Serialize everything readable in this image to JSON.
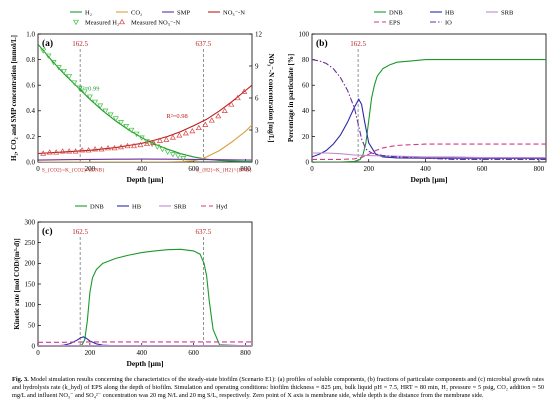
{
  "chart_data": [
    {
      "type": "line",
      "panel_label": "(a)",
      "xlabel": "Depth [µm]",
      "ylabel_left": "H₂, CO₂ and SMP concentration [mmol/L]",
      "ylabel_right": "NO₃⁻-N concentration [mg/L]",
      "xlim": [
        0,
        825
      ],
      "ylim_left": [
        0,
        1.0
      ],
      "ylim_right": [
        0,
        12
      ],
      "xticks": [
        0,
        200,
        400,
        600,
        800
      ],
      "yticks_left": [
        0.0,
        0.2,
        0.4,
        0.6,
        0.8,
        1.0
      ],
      "yticks_right": [
        0,
        3,
        6,
        9,
        12
      ],
      "legend": [
        "H₂",
        "CO₂",
        "SMP",
        "NO₃⁻-N",
        "Measured H₂",
        "Measured NO₃⁻-N"
      ],
      "colors": {
        "H2": "#1a9a2a",
        "CO2": "#d9a13a",
        "SMP": "#6a2f9f",
        "NO3": "#b81e1e",
        "measH2": "#3fbf3f",
        "measNO3": "#d94040"
      },
      "vlines": [
        162.5,
        637.5
      ],
      "vline_labels": [
        "162.5",
        "637.5"
      ],
      "annotations": [
        "R²=0.99",
        "R²=0.98",
        "S_{CO2}=K_{CO2}^{DNB}",
        "S_{H2}=K_{H2}^{DNB}"
      ],
      "series": [
        {
          "name": "H₂",
          "axis": "left",
          "x": [
            0,
            50,
            100,
            150,
            200,
            250,
            300,
            350,
            400,
            450,
            500,
            550,
            600,
            650,
            700,
            750,
            800,
            825
          ],
          "values": [
            0.92,
            0.8,
            0.69,
            0.59,
            0.49,
            0.4,
            0.32,
            0.25,
            0.19,
            0.14,
            0.1,
            0.065,
            0.04,
            0.022,
            0.012,
            0.007,
            0.004,
            0.003
          ]
        },
        {
          "name": "CO₂",
          "axis": "left",
          "x": [
            0,
            100,
            200,
            300,
            400,
            500,
            550,
            600,
            625,
            650,
            700,
            750,
            800,
            825
          ],
          "values": [
            0.0,
            0.0,
            0.0,
            0.0,
            0.0,
            0.0,
            0.003,
            0.01,
            0.02,
            0.04,
            0.09,
            0.16,
            0.24,
            0.29
          ]
        },
        {
          "name": "SMP",
          "axis": "left",
          "x": [
            0,
            100,
            200,
            300,
            400,
            500,
            600,
            700,
            800,
            825
          ],
          "values": [
            0.015,
            0.018,
            0.02,
            0.022,
            0.023,
            0.022,
            0.02,
            0.018,
            0.016,
            0.015
          ]
        },
        {
          "name": "NO₃⁻-N",
          "axis": "right",
          "x": [
            0,
            100,
            200,
            300,
            400,
            450,
            500,
            550,
            600,
            650,
            700,
            750,
            800,
            825
          ],
          "values": [
            0.8,
            0.95,
            1.1,
            1.35,
            1.75,
            2.05,
            2.4,
            2.85,
            3.4,
            4.0,
            4.8,
            5.7,
            6.7,
            7.2
          ]
        },
        {
          "name": "Measured H₂",
          "axis": "left",
          "x": [
            20,
            40,
            60,
            80,
            100,
            120,
            140,
            160,
            180,
            200,
            220,
            240,
            260,
            280,
            300,
            320,
            340,
            360,
            380,
            400,
            420,
            440,
            460,
            480,
            500,
            520,
            540,
            560
          ],
          "values": [
            0.87,
            0.83,
            0.78,
            0.74,
            0.71,
            0.67,
            0.62,
            0.58,
            0.55,
            0.51,
            0.47,
            0.44,
            0.4,
            0.37,
            0.34,
            0.31,
            0.28,
            0.25,
            0.22,
            0.19,
            0.16,
            0.14,
            0.12,
            0.1,
            0.08,
            0.06,
            0.05,
            0.03
          ]
        },
        {
          "name": "Measured NO₃⁻-N",
          "axis": "right",
          "x": [
            20,
            45,
            70,
            95,
            120,
            145,
            170,
            195,
            220,
            245,
            270,
            295,
            320,
            345,
            370,
            395,
            420,
            445,
            470,
            495,
            520,
            545,
            570,
            595,
            620,
            645,
            670,
            695,
            720,
            745,
            770,
            795
          ],
          "values": [
            0.8,
            0.9,
            0.9,
            1.0,
            1.0,
            1.0,
            1.1,
            1.1,
            1.2,
            1.2,
            1.3,
            1.3,
            1.4,
            1.5,
            1.5,
            1.6,
            1.7,
            1.8,
            2.0,
            2.1,
            2.3,
            2.5,
            2.7,
            2.9,
            3.2,
            3.5,
            3.9,
            4.3,
            4.8,
            5.4,
            6.0,
            6.6
          ]
        }
      ]
    },
    {
      "type": "line",
      "panel_label": "(b)",
      "xlabel": "Depth [µm]",
      "ylabel": "Percentage in particulate [%]",
      "xlim": [
        0,
        825
      ],
      "ylim": [
        0,
        100
      ],
      "xticks": [
        0,
        200,
        400,
        600,
        800
      ],
      "yticks": [
        0,
        20,
        40,
        60,
        80,
        100
      ],
      "legend": [
        "DNB",
        "HB",
        "SRB",
        "EPS",
        "IO"
      ],
      "colors": {
        "DNB": "#1a9a2a",
        "HB": "#2a2aa8",
        "SRB": "#c08ad0",
        "EPS": "#d03a8a",
        "IO": "#6a2f9f"
      },
      "vlines": [
        162.5
      ],
      "vline_labels": [
        "162.5"
      ],
      "series": [
        {
          "name": "DNB",
          "x": [
            0,
            100,
            150,
            170,
            180,
            190,
            200,
            210,
            220,
            230,
            250,
            275,
            300,
            350,
            400,
            500,
            600,
            700,
            825
          ],
          "values": [
            0,
            0,
            0.5,
            2,
            6,
            15,
            32,
            50,
            60,
            67,
            73,
            76,
            78,
            79,
            80,
            80,
            80,
            80,
            80
          ]
        },
        {
          "name": "HB",
          "x": [
            0,
            25,
            50,
            75,
            100,
            125,
            150,
            165,
            175,
            185,
            200,
            225,
            250,
            300,
            400,
            500,
            600,
            700,
            825
          ],
          "values": [
            4,
            6,
            9,
            14,
            21,
            31,
            43,
            49,
            45,
            32,
            15,
            6,
            4,
            3.2,
            3,
            3,
            3,
            3,
            3
          ]
        },
        {
          "name": "SRB",
          "x": [
            0,
            50,
            100,
            150,
            200,
            300,
            400,
            500,
            600,
            700,
            825
          ],
          "values": [
            7,
            7,
            6.5,
            5.5,
            5,
            4.5,
            4,
            4,
            3.5,
            3.5,
            3.5
          ]
        },
        {
          "name": "EPS",
          "x": [
            0,
            100,
            150,
            175,
            200,
            225,
            250,
            275,
            300,
            350,
            400,
            500,
            600,
            700,
            825
          ],
          "values": [
            2,
            2,
            2.5,
            3.5,
            6,
            9,
            11,
            12,
            13,
            13.5,
            14,
            14,
            14,
            14,
            14
          ]
        },
        {
          "name": "IO",
          "x": [
            0,
            25,
            50,
            75,
            100,
            125,
            150,
            162.5,
            175,
            190,
            210,
            250,
            300,
            400,
            500,
            600,
            700,
            825
          ],
          "values": [
            80,
            79,
            77,
            73,
            66,
            56,
            42,
            30,
            18,
            10,
            7,
            5,
            4,
            3,
            2,
            2,
            2,
            2
          ]
        }
      ]
    },
    {
      "type": "line",
      "panel_label": "(c)",
      "xlabel": "Depth [µm]",
      "ylabel": "Kinetic rate [mol COD/(m³·d)]",
      "xlim": [
        0,
        825
      ],
      "ylim": [
        0,
        300
      ],
      "xticks": [
        0,
        200,
        400,
        600,
        800
      ],
      "yticks": [
        0,
        50,
        100,
        150,
        200,
        250,
        300
      ],
      "legend": [
        "DNB",
        "HB",
        "SRB",
        "Hyd"
      ],
      "colors": {
        "DNB": "#1a9a2a",
        "HB": "#2a2aa8",
        "SRB": "#c08ad0",
        "Hyd": "#d03a8a"
      },
      "vlines": [
        162.5,
        637.5
      ],
      "vline_labels": [
        "162.5",
        "637.5"
      ],
      "series": [
        {
          "name": "DNB",
          "x": [
            0,
            150,
            170,
            180,
            190,
            200,
            210,
            225,
            250,
            300,
            350,
            400,
            450,
            500,
            550,
            600,
            625,
            640,
            650,
            660,
            675,
            700,
            825
          ],
          "values": [
            0,
            0,
            3,
            15,
            60,
            130,
            165,
            185,
            200,
            212,
            220,
            226,
            230,
            233,
            234,
            230,
            222,
            200,
            170,
            110,
            40,
            3,
            0
          ]
        },
        {
          "name": "HB",
          "x": [
            0,
            75,
            100,
            125,
            150,
            165,
            175,
            185,
            200,
            225,
            250,
            300,
            825
          ],
          "values": [
            0,
            0.5,
            2,
            6,
            14,
            20,
            22,
            19,
            12,
            5,
            2,
            0.5,
            0
          ]
        },
        {
          "name": "SRB",
          "x": [
            0,
            150,
            200,
            300,
            825
          ],
          "values": [
            1,
            1,
            1,
            1,
            1
          ]
        },
        {
          "name": "Hyd",
          "x": [
            0,
            100,
            175,
            200,
            250,
            300,
            825
          ],
          "values": [
            9,
            9,
            10,
            10,
            10,
            10,
            10
          ]
        }
      ]
    }
  ],
  "caption": {
    "label": "Fig. 3.",
    "text": "Model simulation results concerning the characteristics of the steady-state biofilm (Scenario E1): (a) profiles of soluble components, (b) fractions of particulate components and (c) microbial growth rates and hydrolysis rate (k_hyd) of EPS along the depth of biofilm. Simulation and operating conditions: biofilm thickness = 825 µm, bulk liquid pH = 7.5, HRT = 80 min, H₂ pressure = 5 psig, CO₂ addition = 50 mg/L and influent NO₃⁻ and SO₄²⁻ concentration was 20 mg N/L and 20 mg S/L, respectively. Zero point of X axis is membrane side, while depth is the distance from the membrane side."
  }
}
